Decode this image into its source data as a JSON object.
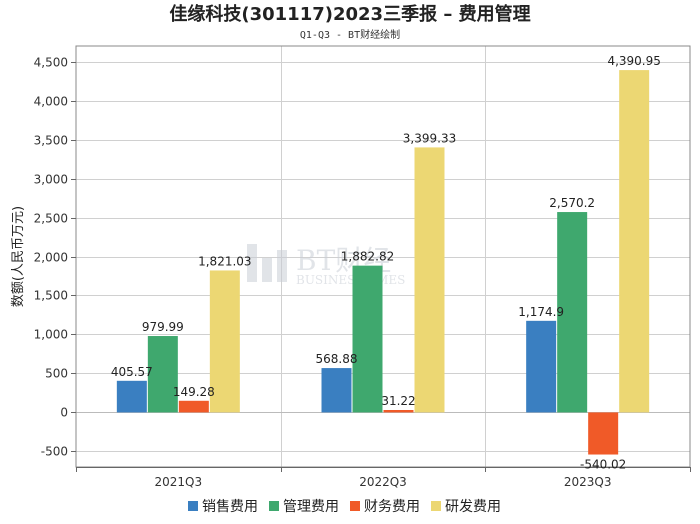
{
  "chart_data": {
    "type": "bar",
    "title": "佳缘科技(301117)2023三季报 – 费用管理",
    "subtitle": "Q1-Q3 - BT财经绘制",
    "ylabel": "数额(人民币万元)",
    "xlabel": "",
    "categories": [
      "2021Q3",
      "2022Q3",
      "2023Q3"
    ],
    "ylim": [
      -700,
      4700
    ],
    "yticks": [
      "-500",
      "0",
      "500",
      "1,000",
      "1,500",
      "2,000",
      "2,500",
      "3,000",
      "3,500",
      "4,000",
      "4,500"
    ],
    "grid": true,
    "legend_position": "bottom",
    "series": [
      {
        "name": "销售费用",
        "color": "#3a7fc1",
        "values": [
          405.57,
          568.88,
          1174.9
        ],
        "labels": [
          "405.57",
          "568.88",
          "1,174.9"
        ]
      },
      {
        "name": "管理费用",
        "color": "#3fa86e",
        "values": [
          979.99,
          1882.82,
          2570.2
        ],
        "labels": [
          "979.99",
          "1,882.82",
          "2,570.2"
        ]
      },
      {
        "name": "财务费用",
        "color": "#f05a28",
        "values": [
          149.28,
          31.22,
          -540.02
        ],
        "labels": [
          "149.28",
          "31.22",
          "-540.02"
        ]
      },
      {
        "name": "研发费用",
        "color": "#ecd773",
        "values": [
          1821.03,
          3399.33,
          4390.95
        ],
        "labels": [
          "1,821.03",
          "3,399.33",
          "4,390.95"
        ]
      }
    ]
  },
  "watermark": {
    "brand": "BT财经",
    "sub": "BUSINESSTIMES"
  }
}
